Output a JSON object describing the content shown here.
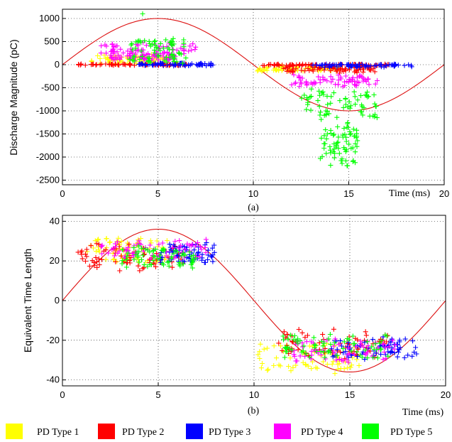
{
  "colors": {
    "pd1": "#ffff00",
    "pd2": "#ff0000",
    "pd3": "#0000ff",
    "pd4": "#ff00ff",
    "pd5": "#00ff00",
    "sine": "#dd1111"
  },
  "legend": [
    {
      "label": "PD Type 1",
      "color": "#ffff00"
    },
    {
      "label": "PD Type 2",
      "color": "#ff0000"
    },
    {
      "label": "PD Type 3",
      "color": "#0000ff"
    },
    {
      "label": "PD Type 4",
      "color": "#ff00ff"
    },
    {
      "label": "PD  Type 5",
      "color": "#00ff00"
    }
  ],
  "chart_data": [
    {
      "type": "scatter",
      "panel_label": "(a)",
      "xlabel": "Time (ms)",
      "ylabel": "Discharge Magnitude (pC)",
      "xlim": [
        0,
        20
      ],
      "ylim": [
        -2600,
        1200
      ],
      "xticks": [
        "0",
        "5",
        "10",
        "15",
        "20"
      ],
      "yticks": [
        "1000",
        "500",
        "0",
        "-500",
        "-1000",
        "-1500",
        "-2000",
        "-2500"
      ],
      "grid": true,
      "sine_reference": {
        "amplitude": 1000,
        "period_ms": 20
      },
      "series": [
        {
          "name": "PD Type 1",
          "clusters": [
            {
              "x": [
                1.5,
                5.5
              ],
              "y": [
                -10,
                250
              ]
            },
            {
              "x": [
                10.2,
                14.5
              ],
              "y": [
                -150,
                -20
              ]
            }
          ]
        },
        {
          "name": "PD Type 2",
          "clusters": [
            {
              "x": [
                0.8,
                6.5
              ],
              "y": [
                -20,
                20
              ]
            },
            {
              "x": [
                10.5,
                17.5
              ],
              "y": [
                -30,
                20
              ]
            },
            {
              "x": [
                11.5,
                16.5
              ],
              "y": [
                -200,
                0
              ]
            }
          ]
        },
        {
          "name": "PD Type 3",
          "clusters": [
            {
              "x": [
                4.0,
                8.0
              ],
              "y": [
                -30,
                40
              ]
            },
            {
              "x": [
                13.0,
                18.3
              ],
              "y": [
                -60,
                20
              ]
            }
          ]
        },
        {
          "name": "PD Type 4",
          "clusters": [
            {
              "x": [
                2.0,
                7.0
              ],
              "y": [
                200,
                500
              ]
            },
            {
              "x": [
                2.5,
                6.0
              ],
              "y": [
                80,
                250
              ]
            },
            {
              "x": [
                12.0,
                16.5
              ],
              "y": [
                -500,
                -200
              ]
            }
          ]
        },
        {
          "name": "PD Type 5",
          "clusters": [
            {
              "x": [
                3.5,
                6.5
              ],
              "y": [
                0,
                600
              ]
            },
            {
              "x": [
                12.5,
                16.5
              ],
              "y": [
                -1300,
                -500
              ]
            },
            {
              "x": [
                13.5,
                15.5
              ],
              "y": [
                -2300,
                -1300
              ]
            }
          ],
          "points": [
            [
              4.2,
              1100
            ],
            [
              4.3,
              520
            ]
          ]
        }
      ]
    },
    {
      "type": "scatter",
      "panel_label": "(b)",
      "xlabel": "Time (ms)",
      "ylabel": "Equivalent Time Length",
      "xlim": [
        0,
        20
      ],
      "ylim": [
        -43,
        43
      ],
      "xticks": [
        "0",
        "5",
        "10",
        "15",
        "20"
      ],
      "yticks": [
        "40",
        "20",
        "0",
        "-20",
        "-40"
      ],
      "grid": true,
      "sine_reference": {
        "amplitude": 36,
        "period_ms": 20
      },
      "series": [
        {
          "name": "PD Type 1",
          "clusters": [
            {
              "x": [
                1.2,
                5.5
              ],
              "y": [
                18,
                33
              ]
            },
            {
              "x": [
                10.2,
                15.5
              ],
              "y": [
                -38,
                -20
              ]
            }
          ]
        },
        {
          "name": "PD Type 2",
          "clusters": [
            {
              "x": [
                0.8,
                6.5
              ],
              "y": [
                14,
                30
              ]
            },
            {
              "x": [
                11.0,
                17.0
              ],
              "y": [
                -30,
                -14
              ]
            }
          ]
        },
        {
          "name": "PD Type 3",
          "clusters": [
            {
              "x": [
                5.0,
                8.0
              ],
              "y": [
                18,
                30
              ]
            },
            {
              "x": [
                14.0,
                18.5
              ],
              "y": [
                -30,
                -18
              ]
            }
          ]
        },
        {
          "name": "PD Type 4",
          "clusters": [
            {
              "x": [
                2.0,
                7.5
              ],
              "y": [
                20,
                32
              ]
            },
            {
              "x": [
                12.0,
                17.5
              ],
              "y": [
                -32,
                -18
              ]
            }
          ]
        },
        {
          "name": "PD Type 5",
          "clusters": [
            {
              "x": [
                3.0,
                7.0
              ],
              "y": [
                16,
                28
              ]
            },
            {
              "x": [
                11.5,
                17.0
              ],
              "y": [
                -30,
                -16
              ]
            }
          ]
        }
      ]
    }
  ]
}
